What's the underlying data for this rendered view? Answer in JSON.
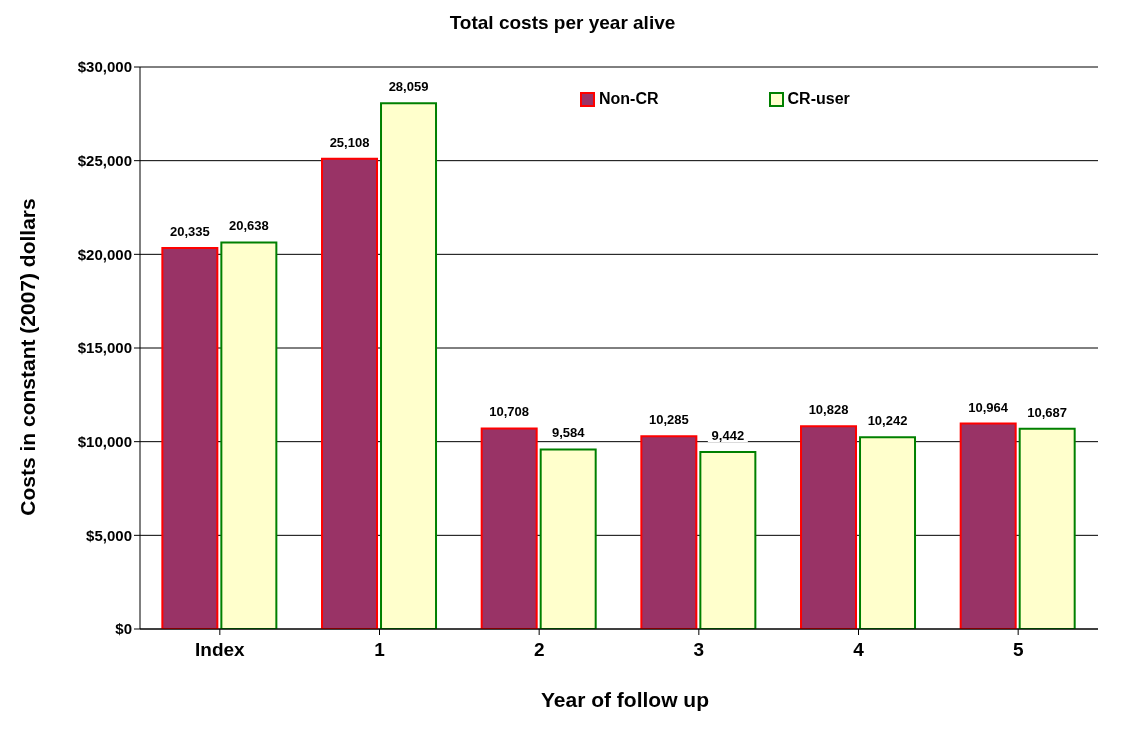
{
  "chart_data": {
    "type": "bar",
    "title": "Total costs per year alive",
    "xlabel": "Year of follow up",
    "ylabel": "Costs in constant (2007) dollars",
    "categories": [
      "Index",
      "1",
      "2",
      "3",
      "4",
      "5"
    ],
    "series": [
      {
        "name": "Non-CR",
        "color": "#993366",
        "values": [
          20335,
          25108,
          10708,
          10285,
          10828,
          10964
        ],
        "value_labels": [
          "20,335",
          "25,108",
          "10,708",
          "10,285",
          "10,828",
          "10,964"
        ]
      },
      {
        "name": "CR-user",
        "color": "#ffffcc",
        "values": [
          20638,
          28059,
          9584,
          9442,
          10242,
          10687
        ],
        "value_labels": [
          "20,638",
          "28,059",
          "9,584",
          "9,442",
          "10,242",
          "10,687"
        ]
      }
    ],
    "ylim": [
      0,
      30000
    ],
    "yticks": [
      {
        "value": 0,
        "label": "$0"
      },
      {
        "value": 5000,
        "label": "$5,000"
      },
      {
        "value": 10000,
        "label": "$10,000"
      },
      {
        "value": 15000,
        "label": "$15,000"
      },
      {
        "value": 20000,
        "label": "$20,000"
      },
      {
        "value": 25000,
        "label": "$25,000"
      },
      {
        "value": 30000,
        "label": "$30,000"
      }
    ],
    "grid": "y",
    "legend": "top right"
  }
}
